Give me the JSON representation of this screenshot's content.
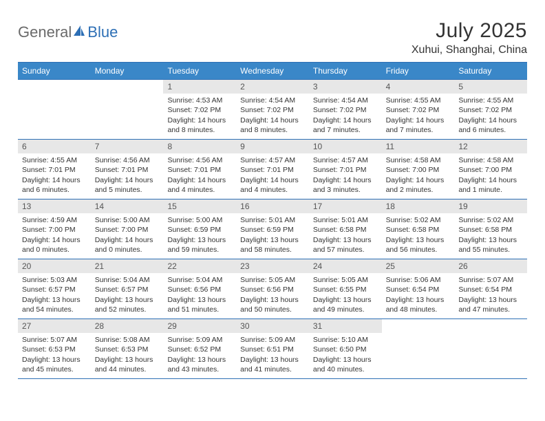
{
  "logo": {
    "general": "General",
    "blue": "Blue"
  },
  "title": "July 2025",
  "location": "Xuhui, Shanghai, China",
  "colors": {
    "header_bg": "#3a87c8",
    "border": "#2d6fb5",
    "daynum_bg": "#e7e7e7",
    "text": "#333333",
    "logo_gray": "#6a6a6a",
    "logo_blue": "#2d6fb5"
  },
  "day_names": [
    "Sunday",
    "Monday",
    "Tuesday",
    "Wednesday",
    "Thursday",
    "Friday",
    "Saturday"
  ],
  "weeks": [
    [
      null,
      null,
      {
        "n": "1",
        "sr": "Sunrise: 4:53 AM",
        "ss": "Sunset: 7:02 PM",
        "d1": "Daylight: 14 hours",
        "d2": "and 8 minutes."
      },
      {
        "n": "2",
        "sr": "Sunrise: 4:54 AM",
        "ss": "Sunset: 7:02 PM",
        "d1": "Daylight: 14 hours",
        "d2": "and 8 minutes."
      },
      {
        "n": "3",
        "sr": "Sunrise: 4:54 AM",
        "ss": "Sunset: 7:02 PM",
        "d1": "Daylight: 14 hours",
        "d2": "and 7 minutes."
      },
      {
        "n": "4",
        "sr": "Sunrise: 4:55 AM",
        "ss": "Sunset: 7:02 PM",
        "d1": "Daylight: 14 hours",
        "d2": "and 7 minutes."
      },
      {
        "n": "5",
        "sr": "Sunrise: 4:55 AM",
        "ss": "Sunset: 7:02 PM",
        "d1": "Daylight: 14 hours",
        "d2": "and 6 minutes."
      }
    ],
    [
      {
        "n": "6",
        "sr": "Sunrise: 4:55 AM",
        "ss": "Sunset: 7:01 PM",
        "d1": "Daylight: 14 hours",
        "d2": "and 6 minutes."
      },
      {
        "n": "7",
        "sr": "Sunrise: 4:56 AM",
        "ss": "Sunset: 7:01 PM",
        "d1": "Daylight: 14 hours",
        "d2": "and 5 minutes."
      },
      {
        "n": "8",
        "sr": "Sunrise: 4:56 AM",
        "ss": "Sunset: 7:01 PM",
        "d1": "Daylight: 14 hours",
        "d2": "and 4 minutes."
      },
      {
        "n": "9",
        "sr": "Sunrise: 4:57 AM",
        "ss": "Sunset: 7:01 PM",
        "d1": "Daylight: 14 hours",
        "d2": "and 4 minutes."
      },
      {
        "n": "10",
        "sr": "Sunrise: 4:57 AM",
        "ss": "Sunset: 7:01 PM",
        "d1": "Daylight: 14 hours",
        "d2": "and 3 minutes."
      },
      {
        "n": "11",
        "sr": "Sunrise: 4:58 AM",
        "ss": "Sunset: 7:00 PM",
        "d1": "Daylight: 14 hours",
        "d2": "and 2 minutes."
      },
      {
        "n": "12",
        "sr": "Sunrise: 4:58 AM",
        "ss": "Sunset: 7:00 PM",
        "d1": "Daylight: 14 hours",
        "d2": "and 1 minute."
      }
    ],
    [
      {
        "n": "13",
        "sr": "Sunrise: 4:59 AM",
        "ss": "Sunset: 7:00 PM",
        "d1": "Daylight: 14 hours",
        "d2": "and 0 minutes."
      },
      {
        "n": "14",
        "sr": "Sunrise: 5:00 AM",
        "ss": "Sunset: 7:00 PM",
        "d1": "Daylight: 14 hours",
        "d2": "and 0 minutes."
      },
      {
        "n": "15",
        "sr": "Sunrise: 5:00 AM",
        "ss": "Sunset: 6:59 PM",
        "d1": "Daylight: 13 hours",
        "d2": "and 59 minutes."
      },
      {
        "n": "16",
        "sr": "Sunrise: 5:01 AM",
        "ss": "Sunset: 6:59 PM",
        "d1": "Daylight: 13 hours",
        "d2": "and 58 minutes."
      },
      {
        "n": "17",
        "sr": "Sunrise: 5:01 AM",
        "ss": "Sunset: 6:58 PM",
        "d1": "Daylight: 13 hours",
        "d2": "and 57 minutes."
      },
      {
        "n": "18",
        "sr": "Sunrise: 5:02 AM",
        "ss": "Sunset: 6:58 PM",
        "d1": "Daylight: 13 hours",
        "d2": "and 56 minutes."
      },
      {
        "n": "19",
        "sr": "Sunrise: 5:02 AM",
        "ss": "Sunset: 6:58 PM",
        "d1": "Daylight: 13 hours",
        "d2": "and 55 minutes."
      }
    ],
    [
      {
        "n": "20",
        "sr": "Sunrise: 5:03 AM",
        "ss": "Sunset: 6:57 PM",
        "d1": "Daylight: 13 hours",
        "d2": "and 54 minutes."
      },
      {
        "n": "21",
        "sr": "Sunrise: 5:04 AM",
        "ss": "Sunset: 6:57 PM",
        "d1": "Daylight: 13 hours",
        "d2": "and 52 minutes."
      },
      {
        "n": "22",
        "sr": "Sunrise: 5:04 AM",
        "ss": "Sunset: 6:56 PM",
        "d1": "Daylight: 13 hours",
        "d2": "and 51 minutes."
      },
      {
        "n": "23",
        "sr": "Sunrise: 5:05 AM",
        "ss": "Sunset: 6:56 PM",
        "d1": "Daylight: 13 hours",
        "d2": "and 50 minutes."
      },
      {
        "n": "24",
        "sr": "Sunrise: 5:05 AM",
        "ss": "Sunset: 6:55 PM",
        "d1": "Daylight: 13 hours",
        "d2": "and 49 minutes."
      },
      {
        "n": "25",
        "sr": "Sunrise: 5:06 AM",
        "ss": "Sunset: 6:54 PM",
        "d1": "Daylight: 13 hours",
        "d2": "and 48 minutes."
      },
      {
        "n": "26",
        "sr": "Sunrise: 5:07 AM",
        "ss": "Sunset: 6:54 PM",
        "d1": "Daylight: 13 hours",
        "d2": "and 47 minutes."
      }
    ],
    [
      {
        "n": "27",
        "sr": "Sunrise: 5:07 AM",
        "ss": "Sunset: 6:53 PM",
        "d1": "Daylight: 13 hours",
        "d2": "and 45 minutes."
      },
      {
        "n": "28",
        "sr": "Sunrise: 5:08 AM",
        "ss": "Sunset: 6:53 PM",
        "d1": "Daylight: 13 hours",
        "d2": "and 44 minutes."
      },
      {
        "n": "29",
        "sr": "Sunrise: 5:09 AM",
        "ss": "Sunset: 6:52 PM",
        "d1": "Daylight: 13 hours",
        "d2": "and 43 minutes."
      },
      {
        "n": "30",
        "sr": "Sunrise: 5:09 AM",
        "ss": "Sunset: 6:51 PM",
        "d1": "Daylight: 13 hours",
        "d2": "and 41 minutes."
      },
      {
        "n": "31",
        "sr": "Sunrise: 5:10 AM",
        "ss": "Sunset: 6:50 PM",
        "d1": "Daylight: 13 hours",
        "d2": "and 40 minutes."
      },
      null,
      null
    ]
  ]
}
